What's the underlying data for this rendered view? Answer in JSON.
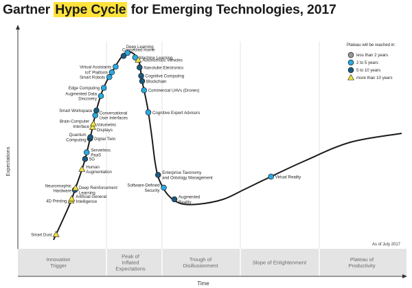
{
  "chart_data": {
    "type": "line",
    "title_before": "Gartner ",
    "title_highlight": "Hype Cycle",
    "title_after": " for Emerging Technologies, 2017",
    "xlabel": "Time",
    "ylabel": "Expectations",
    "as_of": "As of July 2017",
    "phases": [
      {
        "lines": [
          "Innovation",
          "Trigger"
        ]
      },
      {
        "lines": [
          "Peak of",
          "Inflated",
          "Expectations"
        ]
      },
      {
        "lines": [
          "Trough of",
          "Disillusionment"
        ]
      },
      {
        "lines": [
          "Slope of Enlightenment"
        ]
      },
      {
        "lines": [
          "Plateau of",
          "Productivity"
        ]
      }
    ],
    "legend": {
      "title": "Plateau will be reached in:",
      "entries": [
        {
          "key": "lt2",
          "label": "less than 2 years",
          "color": "#999999",
          "marker": "circle"
        },
        {
          "key": "2to5",
          "label": "2 to 5 years",
          "color": "#2aaae2",
          "marker": "circle"
        },
        {
          "key": "5to10",
          "label": "5 to 10 years",
          "color": "#1c5a80",
          "marker": "circle"
        },
        {
          "key": "gt10",
          "label": "more than 10 years",
          "color": "#f2e33a",
          "marker": "triangle"
        }
      ]
    },
    "technologies": [
      {
        "label": [
          "Smart Dust"
        ],
        "t": 0.015,
        "cat": "gt10",
        "side": "left"
      },
      {
        "label": [
          "4D Printing"
        ],
        "t": 0.107,
        "cat": "gt10",
        "side": "left"
      },
      {
        "label": [
          "Artificial General",
          "Intelligence"
        ],
        "t": 0.112,
        "cat": "gt10",
        "side": "right"
      },
      {
        "label": [
          "Deep Reinforcement",
          "Learning"
        ],
        "t": 0.135,
        "cat": "5to10",
        "side": "right"
      },
      {
        "label": [
          "Neuromorphic",
          "Hardware"
        ],
        "t": 0.14,
        "cat": "gt10",
        "side": "left"
      },
      {
        "label": [
          "Human",
          "Augmentation"
        ],
        "t": 0.183,
        "cat": "gt10",
        "side": "right"
      },
      {
        "label": [
          "5G"
        ],
        "t": 0.205,
        "cat": "5to10",
        "side": "right"
      },
      {
        "label": [
          "Serverless",
          "PaaS"
        ],
        "t": 0.218,
        "cat": "2to5",
        "side": "right"
      },
      {
        "label": [
          "Digital Twin"
        ],
        "t": 0.245,
        "cat": "5to10",
        "side": "right"
      },
      {
        "label": [
          "Quantum",
          "Computing"
        ],
        "t": 0.248,
        "cat": "5to10",
        "side": "left"
      },
      {
        "label": [
          "Volumetric",
          "Displays"
        ],
        "t": 0.268,
        "cat": "gt10",
        "side": "right"
      },
      {
        "label": [
          "Brain-Computer",
          "Interface"
        ],
        "t": 0.275,
        "cat": "gt10",
        "side": "left"
      },
      {
        "label": [
          "Conversational",
          "User Interfaces"
        ],
        "t": 0.292,
        "cat": "2to5",
        "side": "right"
      },
      {
        "label": [
          "Smart Workspace"
        ],
        "t": 0.302,
        "cat": "5to10",
        "side": "left"
      },
      {
        "label": [
          "Augmented Data",
          "Discovery"
        ],
        "t": 0.335,
        "cat": "2to5",
        "side": "left"
      },
      {
        "label": [
          "Edge Computing"
        ],
        "t": 0.354,
        "cat": "2to5",
        "side": "left"
      },
      {
        "label": [
          "Smart Robots"
        ],
        "t": 0.383,
        "cat": "2to5",
        "side": "left"
      },
      {
        "label": [
          "IoT Platform"
        ],
        "t": 0.396,
        "cat": "2to5",
        "side": "left"
      },
      {
        "label": [
          "Virtual Assistants"
        ],
        "t": 0.411,
        "cat": "2to5",
        "side": "left"
      },
      {
        "label": [
          "Connected Home"
        ],
        "t": 0.44,
        "cat": "5to10",
        "side": "top"
      },
      {
        "label": [
          "Deep Learning"
        ],
        "t": 0.455,
        "cat": "2to5",
        "side": "top"
      },
      {
        "label": [
          "Machine Learning"
        ],
        "t": 0.488,
        "cat": "2to5",
        "side": "right"
      },
      {
        "label": [
          "Autonomous Vehicles"
        ],
        "t": 0.502,
        "cat": "gt10",
        "side": "right"
      },
      {
        "label": [
          "Nanotube Electronics"
        ],
        "t": 0.519,
        "cat": "5to10",
        "side": "right"
      },
      {
        "label": [
          "Cognitive Computing"
        ],
        "t": 0.538,
        "cat": "5to10",
        "side": "right"
      },
      {
        "label": [
          "Blockchain"
        ],
        "t": 0.55,
        "cat": "5to10",
        "side": "right"
      },
      {
        "label": [
          "Commercial UAVs (Drones)"
        ],
        "t": 0.567,
        "cat": "2to5",
        "side": "right"
      },
      {
        "label": [
          "Cognitive Expert Advisors"
        ],
        "t": 0.608,
        "cat": "2to5",
        "side": "right"
      },
      {
        "label": [
          "Enterprise Taxonomy",
          "and Ontology Management"
        ],
        "t": 0.735,
        "cat": "5to10",
        "side": "right"
      },
      {
        "label": [
          "Software-Defined",
          "Security"
        ],
        "t": 0.775,
        "cat": "2to5",
        "side": "left"
      },
      {
        "label": [
          "Augmented",
          "Reality"
        ],
        "t": 0.825,
        "cat": "5to10",
        "side": "right"
      },
      {
        "label": [
          "Virtual Reality"
        ],
        "t": 1.215,
        "cat": "2to5",
        "side": "right"
      }
    ]
  }
}
